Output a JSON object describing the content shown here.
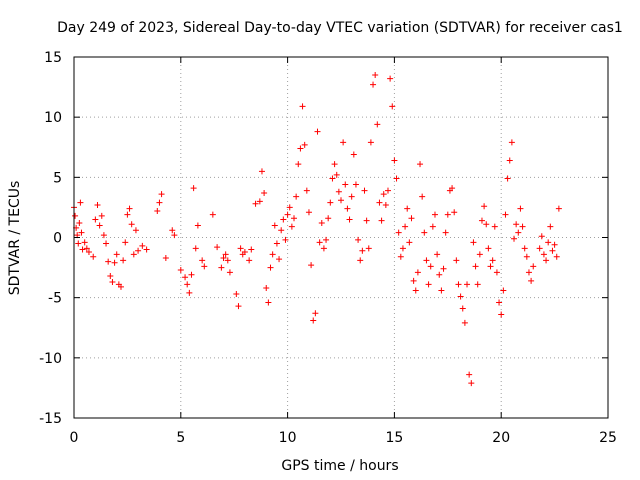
{
  "chart_data": {
    "type": "scatter",
    "title": "Day 249 of 2023, Sidereal Day-to-day VTEC variation (SDTVAR) for receiver cas1",
    "xlabel": "GPS time / hours",
    "ylabel": "SDTVAR / TECUs",
    "xlim": [
      0,
      25
    ],
    "ylim": [
      -15,
      15
    ],
    "xticks": [
      0,
      5,
      10,
      15,
      20,
      25
    ],
    "yticks": [
      -15,
      -10,
      -5,
      0,
      5,
      10,
      15
    ],
    "xtick_labels": [
      "0",
      "5",
      "10",
      "15",
      "20",
      "25"
    ],
    "ytick_labels": [
      "-15",
      "-10",
      "-5",
      "0",
      "5",
      "10",
      "15"
    ],
    "grid": true,
    "marker": "plus",
    "color": "#ff0000",
    "series": [
      {
        "name": "SDTVAR",
        "points": [
          [
            0.0,
            2.5
          ],
          [
            0.05,
            1.8
          ],
          [
            0.1,
            0.8
          ],
          [
            0.15,
            0.2
          ],
          [
            0.2,
            -0.5
          ],
          [
            0.25,
            1.2
          ],
          [
            0.3,
            2.9
          ],
          [
            0.35,
            0.4
          ],
          [
            0.4,
            -1.0
          ],
          [
            0.5,
            -0.4
          ],
          [
            0.6,
            -0.9
          ],
          [
            0.7,
            -1.2
          ],
          [
            0.9,
            -1.6
          ],
          [
            1.0,
            1.5
          ],
          [
            1.1,
            2.7
          ],
          [
            1.2,
            1.0
          ],
          [
            1.3,
            1.8
          ],
          [
            1.4,
            0.2
          ],
          [
            1.5,
            -0.5
          ],
          [
            1.6,
            -2.0
          ],
          [
            1.7,
            -3.2
          ],
          [
            1.8,
            -3.7
          ],
          [
            1.9,
            -2.1
          ],
          [
            2.0,
            -1.4
          ],
          [
            2.1,
            -3.9
          ],
          [
            2.2,
            -4.1
          ],
          [
            2.3,
            -1.9
          ],
          [
            2.4,
            -0.4
          ],
          [
            2.5,
            1.9
          ],
          [
            2.6,
            2.4
          ],
          [
            2.7,
            1.1
          ],
          [
            2.8,
            -1.4
          ],
          [
            2.9,
            0.6
          ],
          [
            3.0,
            -1.1
          ],
          [
            3.2,
            -0.7
          ],
          [
            3.4,
            -1.0
          ],
          [
            3.9,
            2.2
          ],
          [
            4.0,
            2.9
          ],
          [
            4.1,
            3.6
          ],
          [
            4.3,
            -1.7
          ],
          [
            4.6,
            0.6
          ],
          [
            4.7,
            0.2
          ],
          [
            5.0,
            -2.7
          ],
          [
            5.2,
            -3.3
          ],
          [
            5.3,
            -3.9
          ],
          [
            5.4,
            -4.6
          ],
          [
            5.5,
            -3.1
          ],
          [
            5.6,
            4.1
          ],
          [
            5.7,
            -0.9
          ],
          [
            5.8,
            1.0
          ],
          [
            6.0,
            -1.9
          ],
          [
            6.1,
            -2.4
          ],
          [
            6.5,
            1.9
          ],
          [
            6.7,
            -0.8
          ],
          [
            6.9,
            -2.5
          ],
          [
            7.0,
            -1.7
          ],
          [
            7.1,
            -1.4
          ],
          [
            7.2,
            -1.9
          ],
          [
            7.3,
            -2.9
          ],
          [
            7.6,
            -4.7
          ],
          [
            7.7,
            -5.7
          ],
          [
            7.8,
            -0.9
          ],
          [
            7.9,
            -1.4
          ],
          [
            8.0,
            -1.2
          ],
          [
            8.2,
            -1.9
          ],
          [
            8.3,
            -1.0
          ],
          [
            8.5,
            2.8
          ],
          [
            8.7,
            3.0
          ],
          [
            8.8,
            5.5
          ],
          [
            8.9,
            3.7
          ],
          [
            9.0,
            -4.2
          ],
          [
            9.1,
            -5.4
          ],
          [
            9.2,
            -2.5
          ],
          [
            9.3,
            -1.4
          ],
          [
            9.4,
            1.0
          ],
          [
            9.5,
            -0.5
          ],
          [
            9.6,
            -1.8
          ],
          [
            9.7,
            0.6
          ],
          [
            9.8,
            1.5
          ],
          [
            9.9,
            -0.2
          ],
          [
            10.0,
            1.9
          ],
          [
            10.1,
            2.5
          ],
          [
            10.2,
            0.9
          ],
          [
            10.3,
            1.6
          ],
          [
            10.4,
            3.4
          ],
          [
            10.5,
            6.1
          ],
          [
            10.6,
            7.4
          ],
          [
            10.7,
            10.9
          ],
          [
            10.8,
            7.7
          ],
          [
            10.9,
            3.9
          ],
          [
            11.0,
            2.1
          ],
          [
            11.1,
            -2.3
          ],
          [
            11.2,
            -6.9
          ],
          [
            11.3,
            -6.3
          ],
          [
            11.4,
            8.8
          ],
          [
            11.5,
            -0.4
          ],
          [
            11.6,
            1.2
          ],
          [
            11.7,
            -0.9
          ],
          [
            11.8,
            -0.2
          ],
          [
            11.9,
            1.6
          ],
          [
            12.0,
            2.9
          ],
          [
            12.1,
            4.9
          ],
          [
            12.2,
            6.1
          ],
          [
            12.3,
            5.2
          ],
          [
            12.4,
            3.8
          ],
          [
            12.5,
            3.1
          ],
          [
            12.6,
            7.9
          ],
          [
            12.7,
            4.4
          ],
          [
            12.8,
            2.4
          ],
          [
            12.9,
            1.5
          ],
          [
            13.0,
            3.4
          ],
          [
            13.1,
            6.9
          ],
          [
            13.2,
            4.4
          ],
          [
            13.3,
            -0.2
          ],
          [
            13.4,
            -1.9
          ],
          [
            13.5,
            -1.1
          ],
          [
            13.6,
            3.9
          ],
          [
            13.7,
            1.4
          ],
          [
            13.8,
            -0.9
          ],
          [
            13.9,
            7.9
          ],
          [
            14.0,
            12.7
          ],
          [
            14.1,
            13.5
          ],
          [
            14.2,
            9.4
          ],
          [
            14.3,
            2.9
          ],
          [
            14.4,
            1.4
          ],
          [
            14.5,
            3.6
          ],
          [
            14.6,
            2.7
          ],
          [
            14.7,
            3.9
          ],
          [
            14.8,
            13.2
          ],
          [
            14.9,
            10.9
          ],
          [
            15.0,
            6.4
          ],
          [
            15.1,
            4.9
          ],
          [
            15.2,
            0.4
          ],
          [
            15.3,
            -1.6
          ],
          [
            15.4,
            -0.9
          ],
          [
            15.5,
            0.9
          ],
          [
            15.6,
            2.4
          ],
          [
            15.7,
            -0.4
          ],
          [
            15.8,
            1.6
          ],
          [
            15.9,
            -3.6
          ],
          [
            16.0,
            -4.4
          ],
          [
            16.1,
            -2.9
          ],
          [
            16.2,
            6.1
          ],
          [
            16.3,
            3.4
          ],
          [
            16.4,
            0.4
          ],
          [
            16.5,
            -1.9
          ],
          [
            16.6,
            -3.9
          ],
          [
            16.7,
            -2.4
          ],
          [
            16.8,
            0.9
          ],
          [
            16.9,
            1.9
          ],
          [
            17.0,
            -1.4
          ],
          [
            17.1,
            -3.1
          ],
          [
            17.2,
            -4.4
          ],
          [
            17.3,
            -2.6
          ],
          [
            17.4,
            0.4
          ],
          [
            17.5,
            1.9
          ],
          [
            17.6,
            3.9
          ],
          [
            17.7,
            4.1
          ],
          [
            17.8,
            2.1
          ],
          [
            17.9,
            -1.9
          ],
          [
            18.0,
            -3.9
          ],
          [
            18.1,
            -4.9
          ],
          [
            18.2,
            -5.9
          ],
          [
            18.3,
            -7.1
          ],
          [
            18.4,
            -3.9
          ],
          [
            18.5,
            -11.4
          ],
          [
            18.6,
            -12.1
          ],
          [
            18.7,
            -0.4
          ],
          [
            18.8,
            -2.4
          ],
          [
            18.9,
            -3.9
          ],
          [
            19.0,
            -1.4
          ],
          [
            19.1,
            1.4
          ],
          [
            19.2,
            2.6
          ],
          [
            19.3,
            1.1
          ],
          [
            19.4,
            -0.9
          ],
          [
            19.5,
            -2.4
          ],
          [
            19.6,
            -1.9
          ],
          [
            19.7,
            0.9
          ],
          [
            19.8,
            -2.9
          ],
          [
            19.9,
            -5.4
          ],
          [
            20.0,
            -6.4
          ],
          [
            20.1,
            -4.4
          ],
          [
            20.2,
            1.9
          ],
          [
            20.3,
            4.9
          ],
          [
            20.4,
            6.4
          ],
          [
            20.5,
            7.9
          ],
          [
            20.6,
            -0.1
          ],
          [
            20.7,
            1.1
          ],
          [
            20.8,
            0.4
          ],
          [
            20.9,
            2.4
          ],
          [
            21.0,
            0.9
          ],
          [
            21.1,
            -0.9
          ],
          [
            21.2,
            -1.6
          ],
          [
            21.3,
            -2.9
          ],
          [
            21.4,
            -3.6
          ],
          [
            21.5,
            -2.4
          ],
          [
            21.8,
            -0.9
          ],
          [
            21.9,
            0.1
          ],
          [
            22.0,
            -1.4
          ],
          [
            22.1,
            -1.9
          ],
          [
            22.2,
            -0.4
          ],
          [
            22.3,
            0.9
          ],
          [
            22.4,
            -1.1
          ],
          [
            22.5,
            -0.6
          ],
          [
            22.6,
            -1.6
          ],
          [
            22.7,
            2.4
          ]
        ]
      }
    ]
  }
}
